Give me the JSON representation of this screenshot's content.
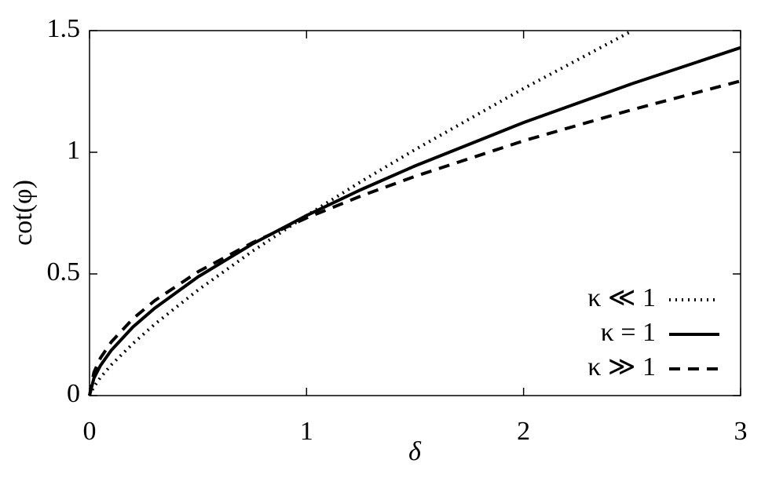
{
  "chart_data": {
    "type": "line",
    "x": [
      0,
      0.02,
      0.05,
      0.1,
      0.2,
      0.3,
      0.5,
      0.75,
      1,
      1.25,
      1.5,
      2,
      2.5,
      3
    ],
    "series": [
      {
        "name": "κ ≪ 1",
        "color": "#000000",
        "dash": "dotted",
        "values": [
          0,
          0.036,
          0.074,
          0.126,
          0.214,
          0.293,
          0.434,
          0.593,
          0.74,
          0.879,
          1.011,
          1.262,
          1.499,
          null
        ]
      },
      {
        "name": "κ = 1",
        "color": "#000000",
        "dash": "solid",
        "values": [
          0,
          0.071,
          0.123,
          0.186,
          0.282,
          0.359,
          0.488,
          0.623,
          0.74,
          0.846,
          0.944,
          1.122,
          1.282,
          1.43
        ]
      },
      {
        "name": "κ ≫ 1",
        "color": "#000000",
        "dash": "dashed",
        "values": [
          0,
          0.095,
          0.154,
          0.22,
          0.316,
          0.39,
          0.509,
          0.628,
          0.73,
          0.82,
          0.901,
          1.047,
          1.175,
          1.293
        ]
      }
    ],
    "x_label": "δ",
    "y_label": "cot(φ)",
    "xlim": [
      0,
      3
    ],
    "ylim": [
      0,
      1.5
    ],
    "xticks": [
      0,
      1,
      2,
      3
    ],
    "yticks": [
      0,
      0.5,
      1,
      1.5
    ],
    "legend": "lower-right",
    "grid": false
  }
}
